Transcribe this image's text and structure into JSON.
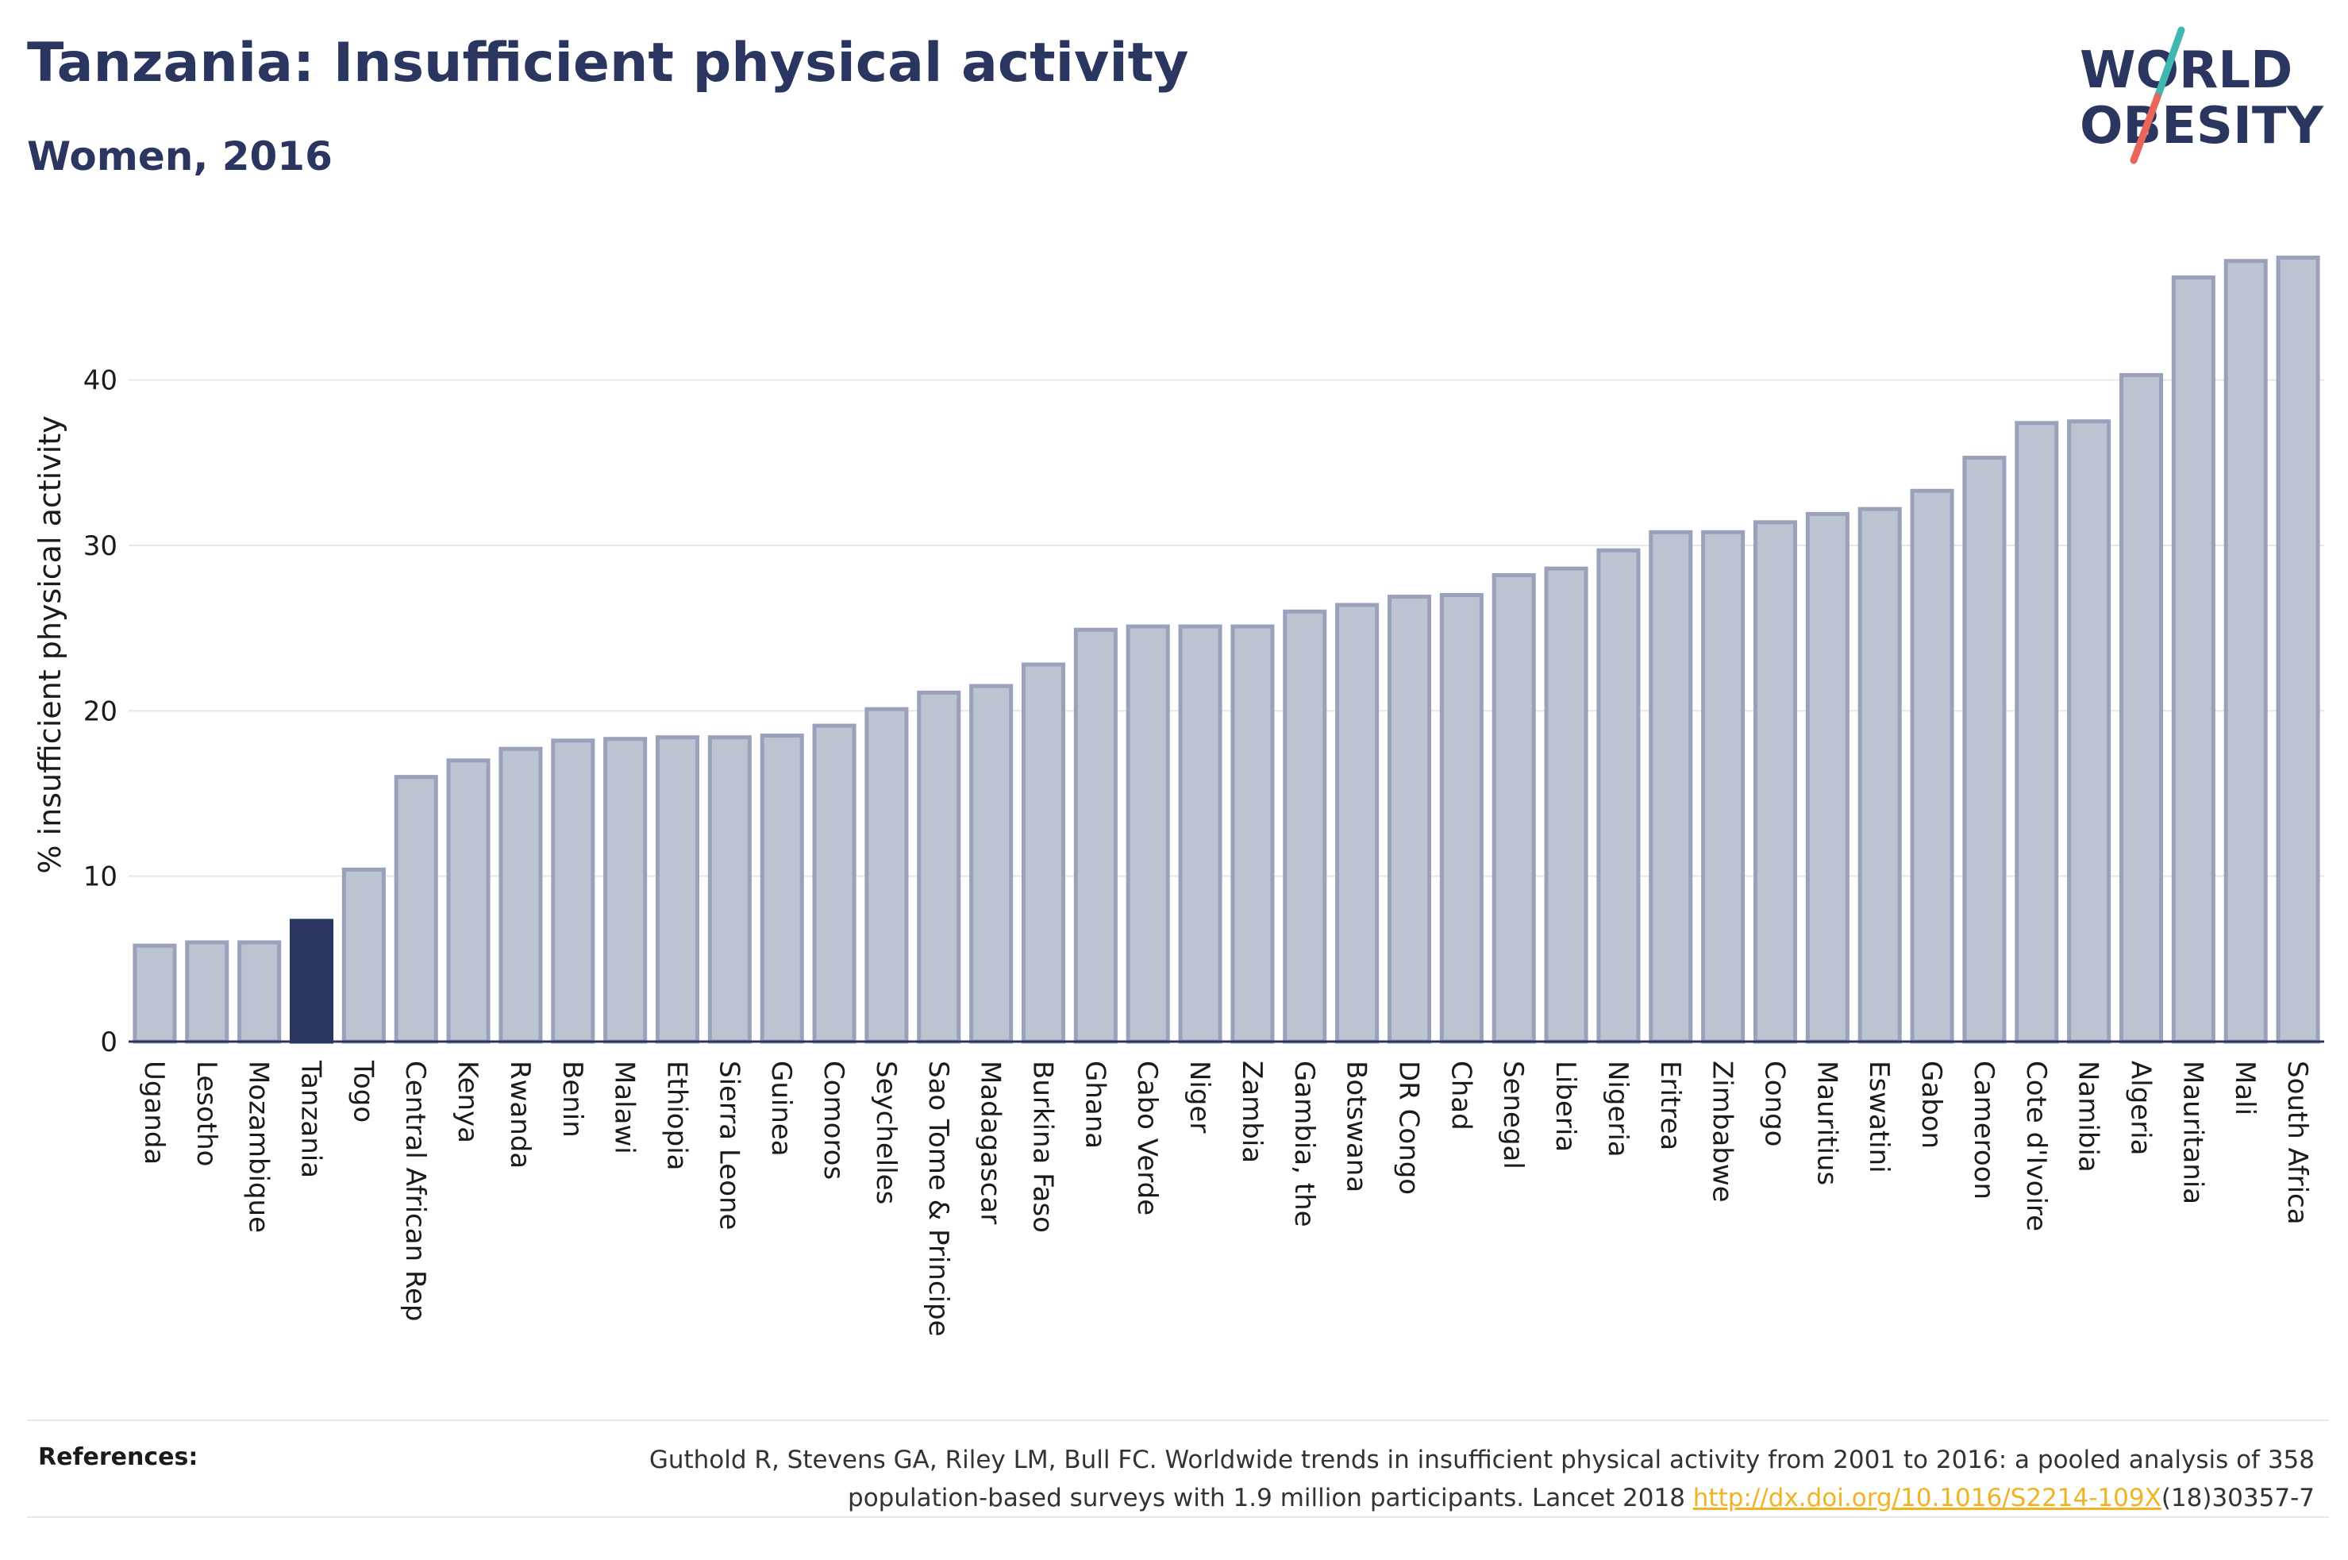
{
  "header": {
    "title": "Tanzania: Insufficient physical activity",
    "subtitle": "Women, 2016"
  },
  "logo": {
    "line1": "WORLD",
    "line2": "OBESITY",
    "accent_teal": "#3fb8af",
    "accent_red": "#e8665a"
  },
  "colors": {
    "bar": "#bec3d2",
    "bar_edge": "#9aa1ba",
    "highlight": "#2b3660",
    "grid": "#e6e6e6",
    "axis": "#2b3660"
  },
  "chart_data": {
    "type": "bar",
    "title": "Tanzania: Insufficient physical activity",
    "subtitle": "Women, 2016",
    "xlabel": "",
    "ylabel": "% insufficient physical activity",
    "ylim": [
      0,
      48
    ],
    "yticks": [
      0,
      10,
      20,
      30,
      40
    ],
    "grid": true,
    "highlight": "Tanzania",
    "categories": [
      "Uganda",
      "Lesotho",
      "Mozambique",
      "Tanzania",
      "Togo",
      "Central African Rep",
      "Kenya",
      "Rwanda",
      "Benin",
      "Malawi",
      "Ethiopia",
      "Sierra Leone",
      "Guinea",
      "Comoros",
      "Seychelles",
      "Sao Tome & Principe",
      "Madagascar",
      "Burkina Faso",
      "Ghana",
      "Cabo Verde",
      "Niger",
      "Zambia",
      "Gambia, the",
      "Botswana",
      "DR Congo",
      "Chad",
      "Senegal",
      "Liberia",
      "Nigeria",
      "Eritrea",
      "Zimbabwe",
      "Congo",
      "Mauritius",
      "Eswatini",
      "Gabon",
      "Cameroon",
      "Cote d'Ivoire",
      "Namibia",
      "Algeria",
      "Mauritania",
      "Mali",
      "South Africa"
    ],
    "values": [
      5.8,
      6.0,
      6.0,
      7.3,
      10.4,
      16.0,
      17.0,
      17.7,
      18.2,
      18.3,
      18.4,
      18.4,
      18.5,
      19.1,
      20.1,
      21.1,
      21.5,
      22.8,
      24.9,
      25.1,
      25.1,
      25.1,
      26.0,
      26.4,
      26.9,
      27.0,
      28.2,
      28.6,
      29.7,
      30.8,
      30.8,
      31.4,
      31.9,
      32.2,
      33.3,
      35.3,
      37.4,
      37.5,
      40.3,
      46.2,
      47.2,
      47.4
    ]
  },
  "references": {
    "label": "References:",
    "text_line1": "Guthold R, Stevens GA, Riley LM, Bull FC. Worldwide trends in insufficient physical activity from 2001 to 2016: a pooled analysis of 358",
    "text_line2_prefix": "population-based surveys with 1.9 million participants. Lancet 2018 ",
    "link": "http://dx.doi.org/10.1016/S2214-109X",
    "text_line2_suffix": "(18)30357-7"
  }
}
